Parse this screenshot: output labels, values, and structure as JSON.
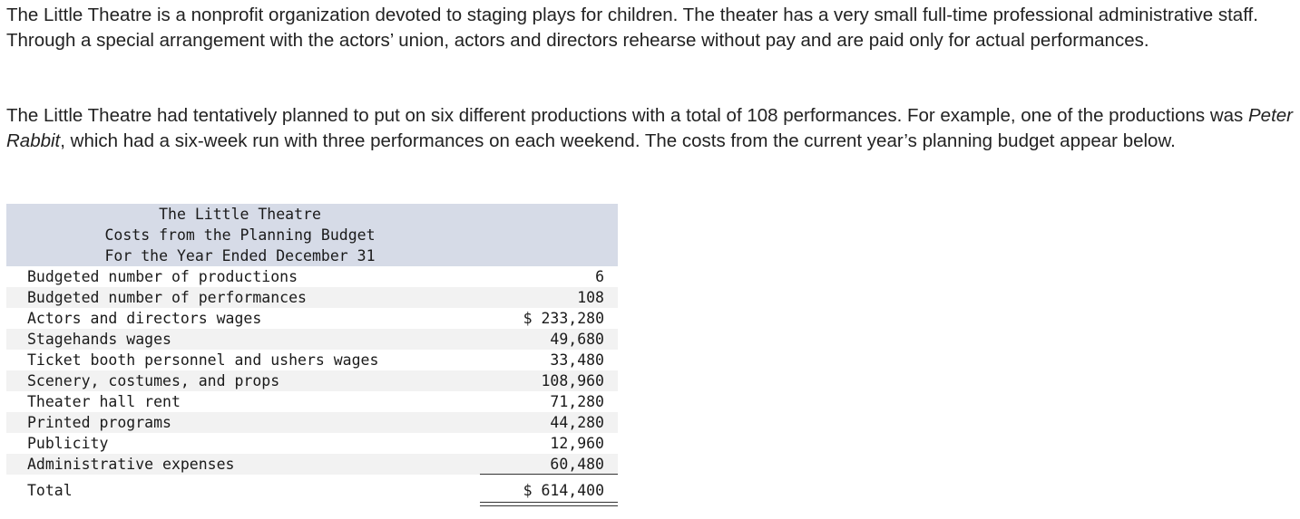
{
  "intro": {
    "paragraph1": "The Little Theatre is a nonprofit organization devoted to staging plays for children. The theater has a very small full-time professional administrative staff. Through a special arrangement with the actors’ union, actors and directors rehearse without pay and are paid only for actual performances.",
    "paragraph2_before": "The Little Theatre had tentatively planned to put on six different productions with a total of 108 performances. For example, one of the productions was ",
    "paragraph2_italic": "Peter Rabbit",
    "paragraph2_after": ", which had a six-week run with three performances on each weekend. The costs from the current year’s planning budget appear below."
  },
  "budget": {
    "title": "The Little Theatre",
    "subtitle": "Costs from the Planning Budget",
    "period": "For the Year Ended December 31",
    "rows": [
      {
        "label": "Budgeted number of productions",
        "value": "6"
      },
      {
        "label": "Budgeted number of performances",
        "value": "108"
      },
      {
        "label": "Actors and directors wages",
        "value": "$ 233,280"
      },
      {
        "label": "Stagehands wages",
        "value": "49,680"
      },
      {
        "label": "Ticket booth personnel and ushers wages",
        "value": "33,480"
      },
      {
        "label": "Scenery, costumes, and props",
        "value": "108,960"
      },
      {
        "label": "Theater hall rent",
        "value": "71,280"
      },
      {
        "label": "Printed programs",
        "value": "44,280"
      },
      {
        "label": "Publicity",
        "value": "12,960"
      },
      {
        "label": "Administrative expenses",
        "value": "60,480"
      }
    ],
    "total": {
      "label": "Total",
      "value": "$ 614,400"
    }
  }
}
